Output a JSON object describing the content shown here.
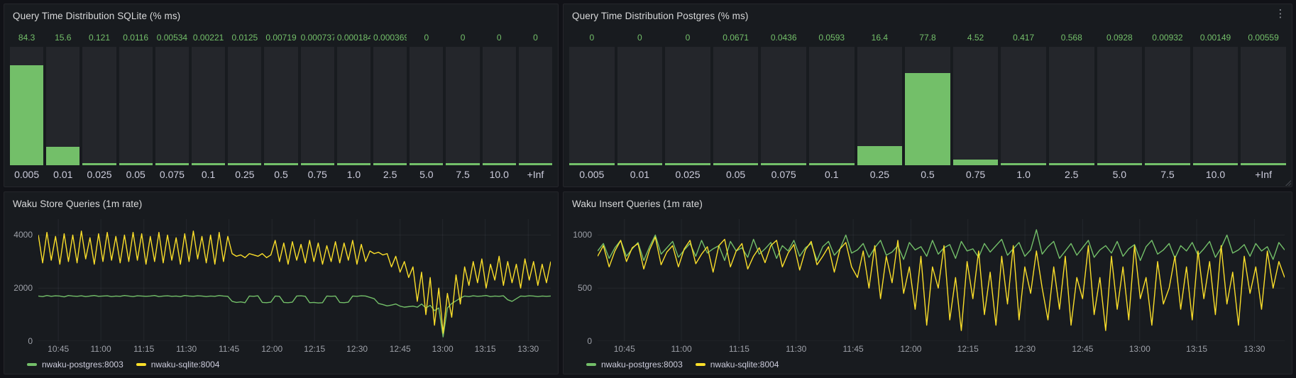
{
  "theme": {
    "background": "#111217",
    "panel_background": "#181b1f",
    "panel_border": "#25262b",
    "title_text": "#d8d9da",
    "muted_text": "#9da0a8",
    "label_text": "#ccccdc",
    "green": "#73bf69",
    "yellow": "#fade2a",
    "bar_track": "#24262b",
    "grid": "rgba(204,204,220,0.07)"
  },
  "icons": {
    "kebab": "⋮"
  },
  "chart_data": [
    {
      "type": "bar",
      "title": "Query Time Distribution SQLite (% ms)",
      "categories": [
        "0.005",
        "0.01",
        "0.025",
        "0.05",
        "0.075",
        "0.1",
        "0.25",
        "0.5",
        "0.75",
        "1.0",
        "2.5",
        "5.0",
        "7.5",
        "10.0",
        "+Inf"
      ],
      "values": [
        84.3,
        15.6,
        0.121,
        0.0116,
        0.00534,
        0.00221,
        0.0125,
        0.00719,
        0.000737,
        0.000184,
        0.000369,
        0,
        0,
        0,
        0
      ],
      "value_labels": [
        "84.3",
        "15.6",
        "0.121",
        "0.0116",
        "0.00534",
        "0.00221",
        "0.0125",
        "0.00719",
        "0.000737",
        "0.000184",
        "0.000369",
        "0",
        "0",
        "0",
        "0"
      ],
      "ylim": [
        0,
        100
      ],
      "bar_color": "#73bf69",
      "xlabel": "",
      "ylabel": ""
    },
    {
      "type": "bar",
      "title": "Query Time Distribution Postgres (% ms)",
      "categories": [
        "0.005",
        "0.01",
        "0.025",
        "0.05",
        "0.075",
        "0.1",
        "0.25",
        "0.5",
        "0.75",
        "1.0",
        "2.5",
        "5.0",
        "7.5",
        "10.0",
        "+Inf"
      ],
      "values": [
        0,
        0,
        0,
        0.0671,
        0.0436,
        0.0593,
        16.4,
        77.8,
        4.52,
        0.417,
        0.568,
        0.0928,
        0.00932,
        0.00149,
        0.00559
      ],
      "value_labels": [
        "0",
        "0",
        "0",
        "0.0671",
        "0.0436",
        "0.0593",
        "16.4",
        "77.8",
        "4.52",
        "0.417",
        "0.568",
        "0.0928",
        "0.00932",
        "0.00149",
        "0.00559"
      ],
      "ylim": [
        0,
        100
      ],
      "bar_color": "#73bf69",
      "xlabel": "",
      "ylabel": ""
    },
    {
      "type": "line",
      "title": "Waku Store Queries (1m rate)",
      "yticks": [
        0,
        2000,
        4000
      ],
      "ylim": [
        0,
        4600
      ],
      "x_tick_labels": [
        "10:45",
        "11:00",
        "11:15",
        "11:30",
        "11:45",
        "12:00",
        "12:15",
        "12:30",
        "12:45",
        "13:00",
        "13:15",
        "13:30"
      ],
      "x_tick_pos": [
        0.039,
        0.122,
        0.206,
        0.289,
        0.372,
        0.456,
        0.539,
        0.622,
        0.706,
        0.789,
        0.872,
        0.956
      ],
      "legend_position": "bottom",
      "series": [
        {
          "name": "nwaku-postgres:8003",
          "color": "#73bf69",
          "values": [
            1700,
            1680,
            1720,
            1690,
            1710,
            1700,
            1670,
            1720,
            1700,
            1690,
            1710,
            1680,
            1700,
            1720,
            1690,
            1700,
            1710,
            1680,
            1700,
            1690,
            1720,
            1700,
            1680,
            1710,
            1700,
            1690,
            1700,
            1720,
            1680,
            1700,
            1710,
            1690,
            1700,
            1680,
            1720,
            1700,
            1690,
            1710,
            1700,
            1680,
            1700,
            1690,
            1720,
            1700,
            1690,
            1500,
            1460,
            1480,
            1450,
            1700,
            1690,
            1710,
            1460,
            1450,
            1470,
            1700,
            1690,
            1460,
            1450,
            1470,
            1700,
            1710,
            1690,
            1450,
            1460,
            1440,
            1450,
            1700,
            1690,
            1700,
            1460,
            1450,
            1470,
            1700,
            1690,
            1710,
            1700,
            1650,
            1600,
            1420,
            1380,
            1330,
            1360,
            1400,
            1320,
            1280,
            1300,
            1320,
            1280,
            1400,
            1250,
            1350,
            1150,
            1250,
            160,
            1250,
            1420,
            1520,
            1620,
            1700,
            1680,
            1710,
            1690,
            1700,
            1720,
            1680,
            1700,
            1690,
            1710,
            1560,
            1500,
            1600,
            1700,
            1690,
            1710,
            1700,
            1680,
            1700,
            1690,
            1700
          ]
        },
        {
          "name": "nwaku-sqlite:8004",
          "color": "#fade2a",
          "values": [
            4000,
            2950,
            4100,
            3050,
            3950,
            2900,
            4050,
            3000,
            4000,
            2950,
            4150,
            3100,
            3900,
            2900,
            4050,
            3000,
            4100,
            3050,
            3950,
            2950,
            4000,
            3000,
            4100,
            3050,
            4050,
            2900,
            3950,
            3000,
            4100,
            2950,
            4000,
            3050,
            3900,
            2900,
            4050,
            3000,
            4150,
            3100,
            3950,
            2950,
            4000,
            2900,
            4100,
            3000,
            3950,
            3300,
            3200,
            3250,
            3150,
            3300,
            3250,
            3200,
            3300,
            3150,
            3250,
            3800,
            3000,
            3700,
            2900,
            3750,
            3050,
            3650,
            2950,
            3800,
            3000,
            3700,
            2900,
            3600,
            3000,
            3750,
            2950,
            3700,
            3050,
            3800,
            2900,
            3650,
            3000,
            3400,
            3300,
            3350,
            3250,
            3300,
            2800,
            3200,
            2600,
            3000,
            2400,
            2800,
            1500,
            2600,
            1000,
            2400,
            600,
            2000,
            300,
            1800,
            900,
            2500,
            1400,
            2800,
            2100,
            3000,
            2200,
            3100,
            2000,
            2900,
            2300,
            3200,
            2100,
            3000,
            2200,
            2900,
            2000,
            3100,
            2300,
            3000,
            2100,
            2900,
            2200,
            3000
          ]
        }
      ]
    },
    {
      "type": "line",
      "title": "Waku Insert Queries (1m rate)",
      "yticks": [
        0,
        500,
        1000
      ],
      "ylim": [
        0,
        1150
      ],
      "x_tick_labels": [
        "10:45",
        "11:00",
        "11:15",
        "11:30",
        "11:45",
        "12:00",
        "12:15",
        "12:30",
        "12:45",
        "13:00",
        "13:15",
        "13:30"
      ],
      "x_tick_pos": [
        0.039,
        0.122,
        0.206,
        0.289,
        0.372,
        0.456,
        0.539,
        0.622,
        0.706,
        0.789,
        0.872,
        0.956
      ],
      "legend_position": "bottom",
      "series": [
        {
          "name": "nwaku-postgres:8003",
          "color": "#73bf69",
          "values": [
            850,
            920,
            780,
            880,
            950,
            800,
            870,
            930,
            760,
            890,
            1000,
            820,
            880,
            940,
            790,
            860,
            920,
            800,
            950,
            830,
            870,
            900,
            760,
            940,
            850,
            880,
            790,
            960,
            820,
            870,
            930,
            780,
            900,
            850,
            950,
            800,
            880,
            920,
            760,
            890,
            940,
            810,
            870,
            1000,
            830,
            860,
            920,
            790,
            880,
            950,
            810,
            840,
            900,
            770,
            930,
            860,
            890,
            800,
            950,
            820,
            880,
            910,
            780,
            940,
            850,
            870,
            790,
            920,
            840,
            900,
            960,
            810,
            870,
            930,
            800,
            860,
            1050,
            820,
            890,
            940,
            780,
            850,
            920,
            810,
            880,
            950,
            790,
            860,
            900,
            830,
            940,
            800,
            870,
            910,
            760,
            890,
            950,
            820,
            860,
            920,
            780,
            900,
            850,
            930,
            810,
            870,
            940,
            790,
            880,
            1000,
            830,
            860,
            910,
            800,
            920,
            850,
            890,
            770,
            930,
            860
          ]
        },
        {
          "name": "nwaku-sqlite:8004",
          "color": "#fade2a",
          "values": [
            800,
            900,
            700,
            850,
            950,
            750,
            880,
            920,
            680,
            860,
            980,
            720,
            840,
            900,
            700,
            870,
            950,
            730,
            820,
            890,
            650,
            900,
            960,
            700,
            850,
            920,
            680,
            800,
            880,
            740,
            900,
            950,
            700,
            830,
            910,
            670,
            860,
            940,
            720,
            800,
            890,
            650,
            870,
            930,
            700,
            600,
            850,
            500,
            900,
            400,
            800,
            550,
            950,
            450,
            700,
            300,
            800,
            150,
            700,
            500,
            900,
            200,
            600,
            100,
            750,
            400,
            850,
            250,
            650,
            150,
            800,
            350,
            900,
            200,
            700,
            450,
            850,
            500,
            200,
            700,
            300,
            800,
            150,
            600,
            400,
            900,
            250,
            600,
            100,
            800,
            300,
            700,
            200,
            900,
            400,
            600,
            150,
            750,
            350,
            500,
            800,
            300,
            700,
            200,
            850,
            400,
            750,
            250,
            900,
            350,
            650,
            150,
            800,
            450,
            700,
            300,
            850,
            500,
            750,
            600
          ]
        }
      ]
    }
  ]
}
